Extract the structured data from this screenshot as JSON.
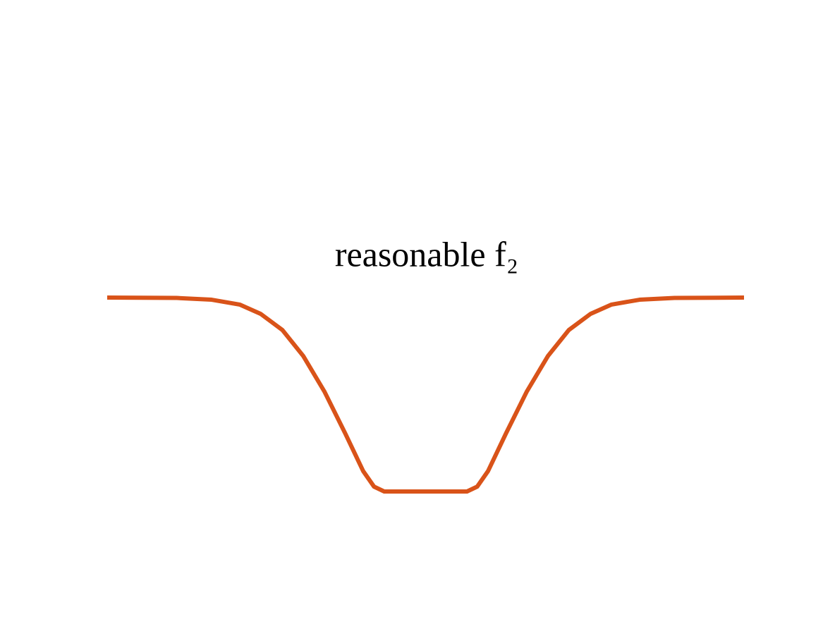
{
  "chart_data": {
    "type": "line",
    "title": "reasonable f₂",
    "x": [
      0,
      1.09,
      1.64,
      2.08,
      2.41,
      2.75,
      3.08,
      3.41,
      3.74,
      4.02,
      4.19,
      4.35,
      5.65,
      5.81,
      5.98,
      6.26,
      6.59,
      6.92,
      7.25,
      7.59,
      7.92,
      8.36,
      8.91,
      10
    ],
    "values": [
      1,
      0.998,
      0.989,
      0.964,
      0.916,
      0.833,
      0.698,
      0.516,
      0.298,
      0.105,
      0.025,
      0,
      0,
      0.025,
      0.105,
      0.298,
      0.516,
      0.698,
      0.833,
      0.916,
      0.964,
      0.989,
      0.998,
      1
    ],
    "color": "#d95319",
    "xlim": [
      0,
      10
    ],
    "ylim": [
      0,
      1
    ]
  }
}
